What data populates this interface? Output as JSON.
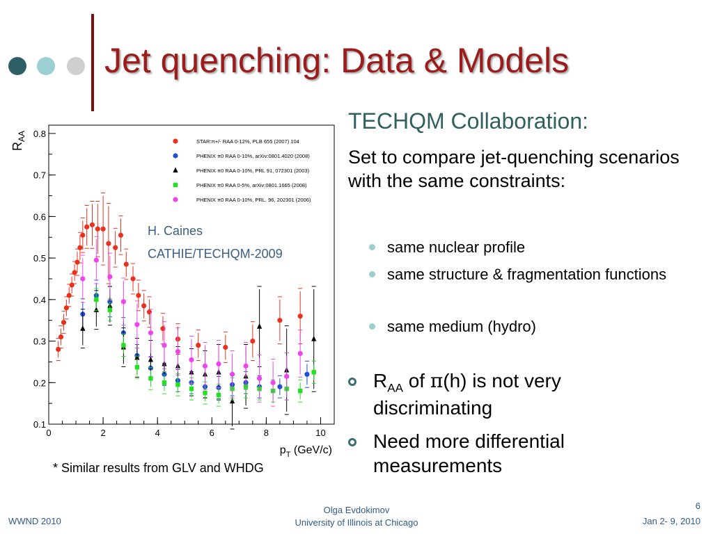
{
  "slide": {
    "title": "Jet quenching: Data & Models",
    "dot_colors": [
      "#2e5f66",
      "#9ccfd2",
      "#cfcfcf"
    ],
    "title_color": "#9c1b1b"
  },
  "right": {
    "collaboration": "TECHQM Collaboration:",
    "intro": "Set to compare jet-quenching scenarios with the same constraints:",
    "sub_bullets": [
      "same nuclear profile",
      "same structure & fragmentation functions",
      "same medium (hydro)"
    ],
    "bullet1": {
      "r": "R",
      "sub": "AA",
      "of": " of ",
      "pi": "π",
      "rest": "(h) is not very discriminating"
    },
    "bullet2": "Need more differential measurements"
  },
  "annotation": {
    "line1": "H. Caines",
    "line2": "CATHIE/TECHQM-2009"
  },
  "footnote": "* Similar results from GLV and WHDG",
  "footer": {
    "left": "WWND 2010",
    "center1": "Olga Evdokimov",
    "center2": "University of Illinois at Chicago",
    "page": "6",
    "right": "Jan 2- 9, 2010"
  },
  "chart_data": {
    "type": "scatter",
    "xlabel": "p",
    "xlabel_sub": "T",
    "xlabel_unit": " (GeV/c)",
    "ylabel": "R",
    "ylabel_sub": "AA",
    "xlim": [
      0,
      10.5
    ],
    "ylim": [
      0.1,
      0.82
    ],
    "xticks": [
      0,
      2,
      4,
      6,
      8,
      10
    ],
    "yticks": [
      0.1,
      0.2,
      0.3,
      0.4,
      0.5,
      0.6,
      0.7,
      0.8
    ],
    "legend_position": "top-right",
    "series": [
      {
        "name": "STAR:π+/- RAA 0-12%, PLB 655 (2007) 104",
        "color": "#e8321e",
        "marker": "circle",
        "points": [
          {
            "x": 0.35,
            "y": 0.28,
            "err": 0.02
          },
          {
            "x": 0.45,
            "y": 0.31,
            "err": 0.02
          },
          {
            "x": 0.55,
            "y": 0.345,
            "err": 0.02
          },
          {
            "x": 0.65,
            "y": 0.38,
            "err": 0.02
          },
          {
            "x": 0.75,
            "y": 0.41,
            "err": 0.02
          },
          {
            "x": 0.85,
            "y": 0.435,
            "err": 0.02
          },
          {
            "x": 0.95,
            "y": 0.465,
            "err": 0.02
          },
          {
            "x": 1.05,
            "y": 0.49,
            "err": 0.025
          },
          {
            "x": 1.15,
            "y": 0.525,
            "err": 0.03
          },
          {
            "x": 1.25,
            "y": 0.555,
            "err": 0.035
          },
          {
            "x": 1.4,
            "y": 0.575,
            "err": 0.045
          },
          {
            "x": 1.6,
            "y": 0.58,
            "err": 0.05
          },
          {
            "x": 1.8,
            "y": 0.57,
            "err": 0.06
          },
          {
            "x": 2.0,
            "y": 0.57,
            "err": 0.08
          },
          {
            "x": 2.2,
            "y": 0.535,
            "err": 0.09
          },
          {
            "x": 2.45,
            "y": 0.525,
            "err": 0.04
          },
          {
            "x": 2.65,
            "y": 0.555,
            "err": 0.04
          },
          {
            "x": 2.85,
            "y": 0.485,
            "err": 0.03
          },
          {
            "x": 3.1,
            "y": 0.45,
            "err": 0.03
          },
          {
            "x": 3.3,
            "y": 0.41,
            "err": 0.03
          },
          {
            "x": 3.5,
            "y": 0.385,
            "err": 0.03
          },
          {
            "x": 3.7,
            "y": 0.37,
            "err": 0.03
          },
          {
            "x": 4.2,
            "y": 0.33,
            "err": 0.03
          },
          {
            "x": 4.75,
            "y": 0.305,
            "err": 0.03
          },
          {
            "x": 5.5,
            "y": 0.29,
            "err": 0.03
          },
          {
            "x": 6.5,
            "y": 0.285,
            "err": 0.03
          },
          {
            "x": 7.5,
            "y": 0.3,
            "err": 0.04
          },
          {
            "x": 8.5,
            "y": 0.35,
            "err": 0.05
          },
          {
            "x": 9.25,
            "y": 0.36,
            "err": 0.06
          }
        ]
      },
      {
        "name": "PHENIX π0 RAA 0-10%, arXiv:0801.4020 (2008)",
        "color": "#1f4fd6",
        "marker": "circle",
        "points": [
          {
            "x": 1.25,
            "y": 0.365,
            "err": 0.03
          },
          {
            "x": 1.75,
            "y": 0.41,
            "err": 0.03
          },
          {
            "x": 2.25,
            "y": 0.395,
            "err": 0.03
          },
          {
            "x": 2.75,
            "y": 0.32,
            "err": 0.03
          },
          {
            "x": 3.25,
            "y": 0.265,
            "err": 0.02
          },
          {
            "x": 3.75,
            "y": 0.235,
            "err": 0.02
          },
          {
            "x": 4.25,
            "y": 0.22,
            "err": 0.02
          },
          {
            "x": 4.75,
            "y": 0.205,
            "err": 0.02
          },
          {
            "x": 5.25,
            "y": 0.2,
            "err": 0.02
          },
          {
            "x": 5.75,
            "y": 0.19,
            "err": 0.02
          },
          {
            "x": 6.25,
            "y": 0.188,
            "err": 0.02
          },
          {
            "x": 6.75,
            "y": 0.195,
            "err": 0.02
          },
          {
            "x": 7.25,
            "y": 0.2,
            "err": 0.02
          },
          {
            "x": 7.75,
            "y": 0.19,
            "err": 0.02
          },
          {
            "x": 8.5,
            "y": 0.19,
            "err": 0.02
          },
          {
            "x": 9.5,
            "y": 0.22,
            "err": 0.025
          }
        ]
      },
      {
        "name": "PHENIX π0 RAA 0-10%, PRL 91, 072301 (2003)",
        "color": "#000000",
        "marker": "triangle",
        "points": [
          {
            "x": 1.25,
            "y": 0.33,
            "err": 0.04
          },
          {
            "x": 1.75,
            "y": 0.375,
            "err": 0.04
          },
          {
            "x": 2.25,
            "y": 0.385,
            "err": 0.04
          },
          {
            "x": 2.75,
            "y": 0.285,
            "err": 0.04
          },
          {
            "x": 3.25,
            "y": 0.26,
            "err": 0.04
          },
          {
            "x": 3.75,
            "y": 0.255,
            "err": 0.04
          },
          {
            "x": 4.25,
            "y": 0.245,
            "err": 0.04
          },
          {
            "x": 4.75,
            "y": 0.24,
            "err": 0.04
          },
          {
            "x": 5.25,
            "y": 0.225,
            "err": 0.05
          },
          {
            "x": 5.75,
            "y": 0.22,
            "err": 0.05
          },
          {
            "x": 6.25,
            "y": 0.225,
            "err": 0.06
          },
          {
            "x": 6.75,
            "y": 0.155,
            "err": 0.06
          },
          {
            "x": 7.25,
            "y": 0.215,
            "err": 0.07
          },
          {
            "x": 7.75,
            "y": 0.335,
            "err": 0.09
          },
          {
            "x": 8.75,
            "y": 0.23,
            "err": 0.1
          },
          {
            "x": 9.75,
            "y": 0.305,
            "err": 0.12
          }
        ]
      },
      {
        "name": "PHENIX π0 RAA 0-5%, arXiv:0801.1665 (2008)",
        "color": "#22e022",
        "marker": "square",
        "points": [
          {
            "x": 1.75,
            "y": 0.4,
            "err": 0.02
          },
          {
            "x": 2.25,
            "y": 0.375,
            "err": 0.02
          },
          {
            "x": 2.75,
            "y": 0.29,
            "err": 0.02
          },
          {
            "x": 3.25,
            "y": 0.237,
            "err": 0.02
          },
          {
            "x": 3.75,
            "y": 0.21,
            "err": 0.02
          },
          {
            "x": 4.25,
            "y": 0.2,
            "err": 0.02
          },
          {
            "x": 4.75,
            "y": 0.195,
            "err": 0.02
          },
          {
            "x": 5.25,
            "y": 0.185,
            "err": 0.02
          },
          {
            "x": 5.75,
            "y": 0.175,
            "err": 0.02
          },
          {
            "x": 6.25,
            "y": 0.17,
            "err": 0.02
          },
          {
            "x": 6.75,
            "y": 0.185,
            "err": 0.02
          },
          {
            "x": 7.25,
            "y": 0.19,
            "err": 0.02
          },
          {
            "x": 7.75,
            "y": 0.185,
            "err": 0.02
          },
          {
            "x": 8.25,
            "y": 0.18,
            "err": 0.02
          },
          {
            "x": 8.75,
            "y": 0.185,
            "err": 0.02
          },
          {
            "x": 9.25,
            "y": 0.18,
            "err": 0.02
          },
          {
            "x": 9.75,
            "y": 0.225,
            "err": 0.02
          }
        ]
      },
      {
        "name": "PHENIX π0 RAA 0-10%, PRL. 96, 202301 (2006)",
        "color": "#ee44ee",
        "marker": "circle",
        "points": [
          {
            "x": 1.25,
            "y": 0.45,
            "err": 0.05
          },
          {
            "x": 1.75,
            "y": 0.495,
            "err": 0.05
          },
          {
            "x": 2.25,
            "y": 0.455,
            "err": 0.05
          },
          {
            "x": 2.75,
            "y": 0.395,
            "err": 0.05
          },
          {
            "x": 3.25,
            "y": 0.34,
            "err": 0.05
          },
          {
            "x": 3.75,
            "y": 0.32,
            "err": 0.05
          },
          {
            "x": 4.25,
            "y": 0.29,
            "err": 0.05
          },
          {
            "x": 4.75,
            "y": 0.275,
            "err": 0.05
          },
          {
            "x": 5.25,
            "y": 0.255,
            "err": 0.05
          },
          {
            "x": 5.75,
            "y": 0.24,
            "err": 0.05
          },
          {
            "x": 6.25,
            "y": 0.245,
            "err": 0.05
          },
          {
            "x": 6.75,
            "y": 0.22,
            "err": 0.05
          },
          {
            "x": 7.25,
            "y": 0.24,
            "err": 0.05
          },
          {
            "x": 7.75,
            "y": 0.21,
            "err": 0.05
          },
          {
            "x": 8.25,
            "y": 0.2,
            "err": 0.05
          },
          {
            "x": 8.75,
            "y": 0.215,
            "err": 0.05
          },
          {
            "x": 9.25,
            "y": 0.27,
            "err": 0.05
          }
        ]
      }
    ]
  }
}
